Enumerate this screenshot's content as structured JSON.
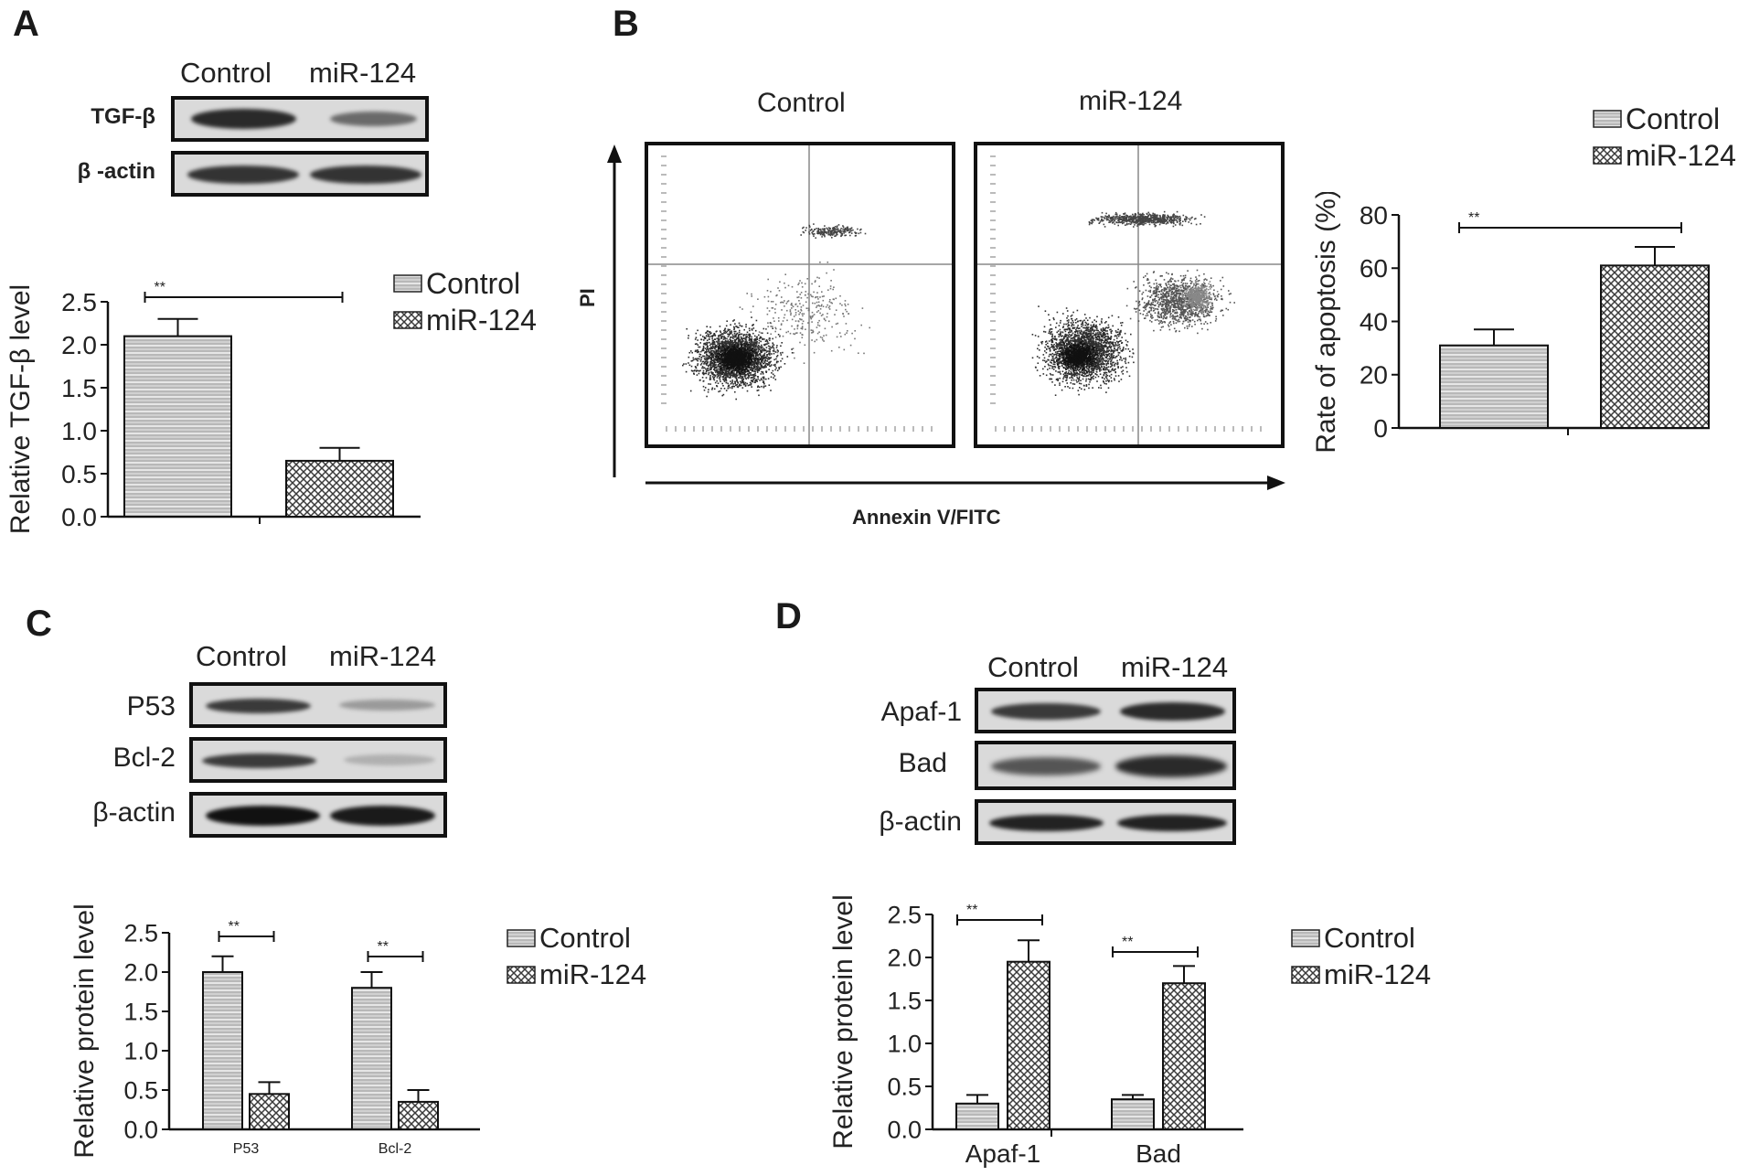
{
  "panels": {
    "A": {
      "letter": "A",
      "blot": {
        "columns": [
          "Control",
          "miR-124"
        ],
        "rows": [
          "TGF-β",
          "β -actin"
        ],
        "band_intensity": [
          [
            0.9,
            0.45
          ],
          [
            0.85,
            0.85
          ]
        ]
      },
      "chart_data": {
        "type": "bar",
        "categories": [
          ""
        ],
        "series": [
          {
            "name": "Control",
            "values": [
              2.1
            ],
            "errors": [
              0.2
            ]
          },
          {
            "name": "miR-124",
            "values": [
              0.65
            ],
            "errors": [
              0.15
            ]
          }
        ],
        "ylabel": "Relative TGF-β level",
        "ylim": [
          0,
          2.5
        ],
        "yticks": [
          "0.0",
          "0.5",
          "1.0",
          "1.5",
          "2.0",
          "2.5"
        ],
        "significance": [
          "**"
        ],
        "legend": [
          "Control",
          "miR-124"
        ]
      }
    },
    "B": {
      "letter": "B",
      "flow": {
        "columns": [
          "Control",
          "miR-124"
        ],
        "ylabel": "PI",
        "xlabel": "Annexin V/FITC"
      },
      "chart_data": {
        "type": "bar",
        "categories": [
          ""
        ],
        "series": [
          {
            "name": "Control",
            "values": [
              31
            ],
            "errors": [
              6
            ]
          },
          {
            "name": "miR-124",
            "values": [
              61
            ],
            "errors": [
              7
            ]
          }
        ],
        "ylabel": "Rate of apoptosis (%)",
        "ylim": [
          0,
          80
        ],
        "yticks": [
          "0",
          "20",
          "40",
          "60",
          "80"
        ],
        "significance": [
          "**"
        ],
        "legend": [
          "Control",
          "miR-124"
        ]
      }
    },
    "C": {
      "letter": "C",
      "blot": {
        "columns": [
          "Control",
          "miR-124"
        ],
        "rows": [
          "P53",
          "Bcl-2",
          "β-actin"
        ],
        "band_intensity": [
          [
            0.75,
            0.35
          ],
          [
            0.75,
            0.25
          ],
          [
            0.95,
            0.9
          ]
        ]
      },
      "chart_data": {
        "type": "bar",
        "categories": [
          "P53",
          "Bcl-2"
        ],
        "series": [
          {
            "name": "Control",
            "values": [
              2.0,
              1.8
            ],
            "errors": [
              0.2,
              0.2
            ]
          },
          {
            "name": "miR-124",
            "values": [
              0.45,
              0.35
            ],
            "errors": [
              0.15,
              0.15
            ]
          }
        ],
        "ylabel": "Relative protein level",
        "ylim": [
          0,
          2.5
        ],
        "yticks": [
          "0.0",
          "0.5",
          "1.0",
          "1.5",
          "2.0",
          "2.5"
        ],
        "significance": [
          "**",
          "**"
        ],
        "legend": [
          "Control",
          "miR-124"
        ]
      }
    },
    "D": {
      "letter": "D",
      "blot": {
        "columns": [
          "Control",
          "miR-124"
        ],
        "rows": [
          "Apaf-1",
          "Bad",
          "β-actin"
        ],
        "band_intensity": [
          [
            0.7,
            0.85
          ],
          [
            0.65,
            0.9
          ],
          [
            0.9,
            0.9
          ]
        ]
      },
      "chart_data": {
        "type": "bar",
        "categories": [
          "Apaf-1",
          "Bad"
        ],
        "series": [
          {
            "name": "Control",
            "values": [
              0.3,
              0.35
            ],
            "errors": [
              0.1,
              0.05
            ]
          },
          {
            "name": "miR-124",
            "values": [
              1.95,
              1.7
            ],
            "errors": [
              0.25,
              0.2
            ]
          }
        ],
        "ylabel": "Relative protein level",
        "ylim": [
          0,
          2.5
        ],
        "yticks": [
          "0.0",
          "0.5",
          "1.0",
          "1.5",
          "2.0",
          "2.5"
        ],
        "significance": [
          "**",
          "**"
        ],
        "legend": [
          "Control",
          "miR-124"
        ]
      }
    }
  }
}
